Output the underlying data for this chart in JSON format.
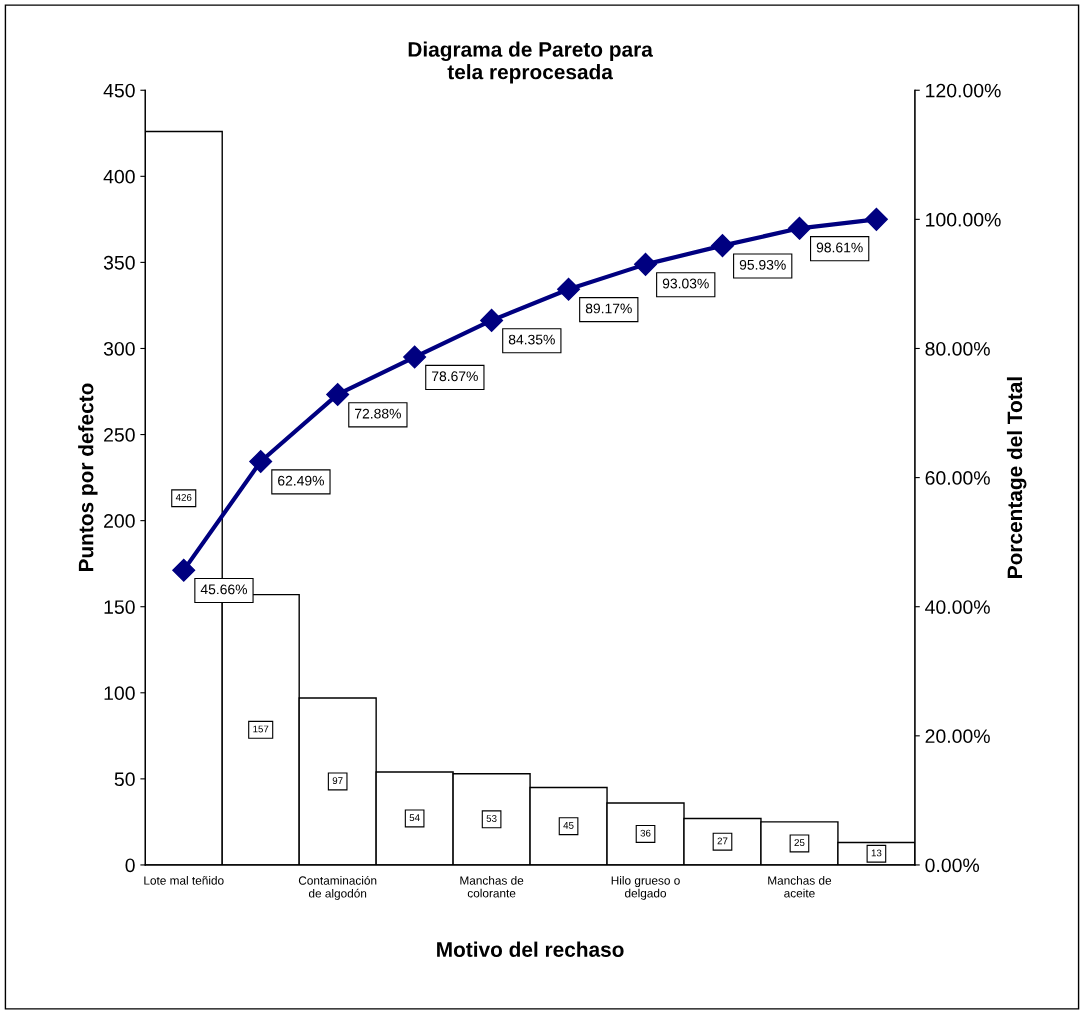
{
  "chart_data": {
    "type": "bar",
    "title": "Diagrama de Pareto para\ntela reprocesada",
    "xlabel": "Motivo del rechaso",
    "ylabel": "Puntos por defecto",
    "y2label": "Porcentage del Total",
    "categories": [
      "Lote mal teñido",
      null,
      "Contaminación\nde algodón",
      null,
      "Manchas de\ncolorante",
      null,
      "Hilo grueso o\ndelgado",
      null,
      "Manchas de\naceite",
      null
    ],
    "series": [
      {
        "color": "#ffffff",
        "values": [
          426,
          157,
          97,
          54,
          53,
          45,
          36,
          27,
          25,
          13
        ],
        "value_labels": [
          "426",
          "157",
          "97",
          "54",
          "53",
          "45",
          "36",
          "27",
          "25",
          "13"
        ]
      },
      {
        "type": "line",
        "axis": "y2",
        "color": "#000080",
        "marker": "diamond",
        "values": [
          45.66,
          62.49,
          72.88,
          78.67,
          84.35,
          89.17,
          93.03,
          95.93,
          98.61,
          100
        ],
        "value_labels": [
          "45.66%",
          "62.49%",
          "72.88%",
          "78.67%",
          "84.35%",
          "89.17%",
          "93.03%",
          "95.93%",
          "98.61%",
          null
        ]
      }
    ],
    "ylim": [
      0,
      450
    ],
    "yticks": [
      0,
      50,
      100,
      150,
      200,
      250,
      300,
      350,
      400,
      450
    ],
    "y2lim": [
      0,
      120
    ],
    "y2ticks": [
      {
        "value": 0,
        "label": "0.00%"
      },
      {
        "value": 20,
        "label": "20.00%"
      },
      {
        "value": 40,
        "label": "40.00%"
      },
      {
        "value": 60,
        "label": "60.00%"
      },
      {
        "value": 80,
        "label": "80.00%"
      },
      {
        "value": 100,
        "label": "100.00%"
      },
      {
        "value": 120,
        "label": "120.00%"
      }
    ],
    "grid": false,
    "legend": false
  }
}
